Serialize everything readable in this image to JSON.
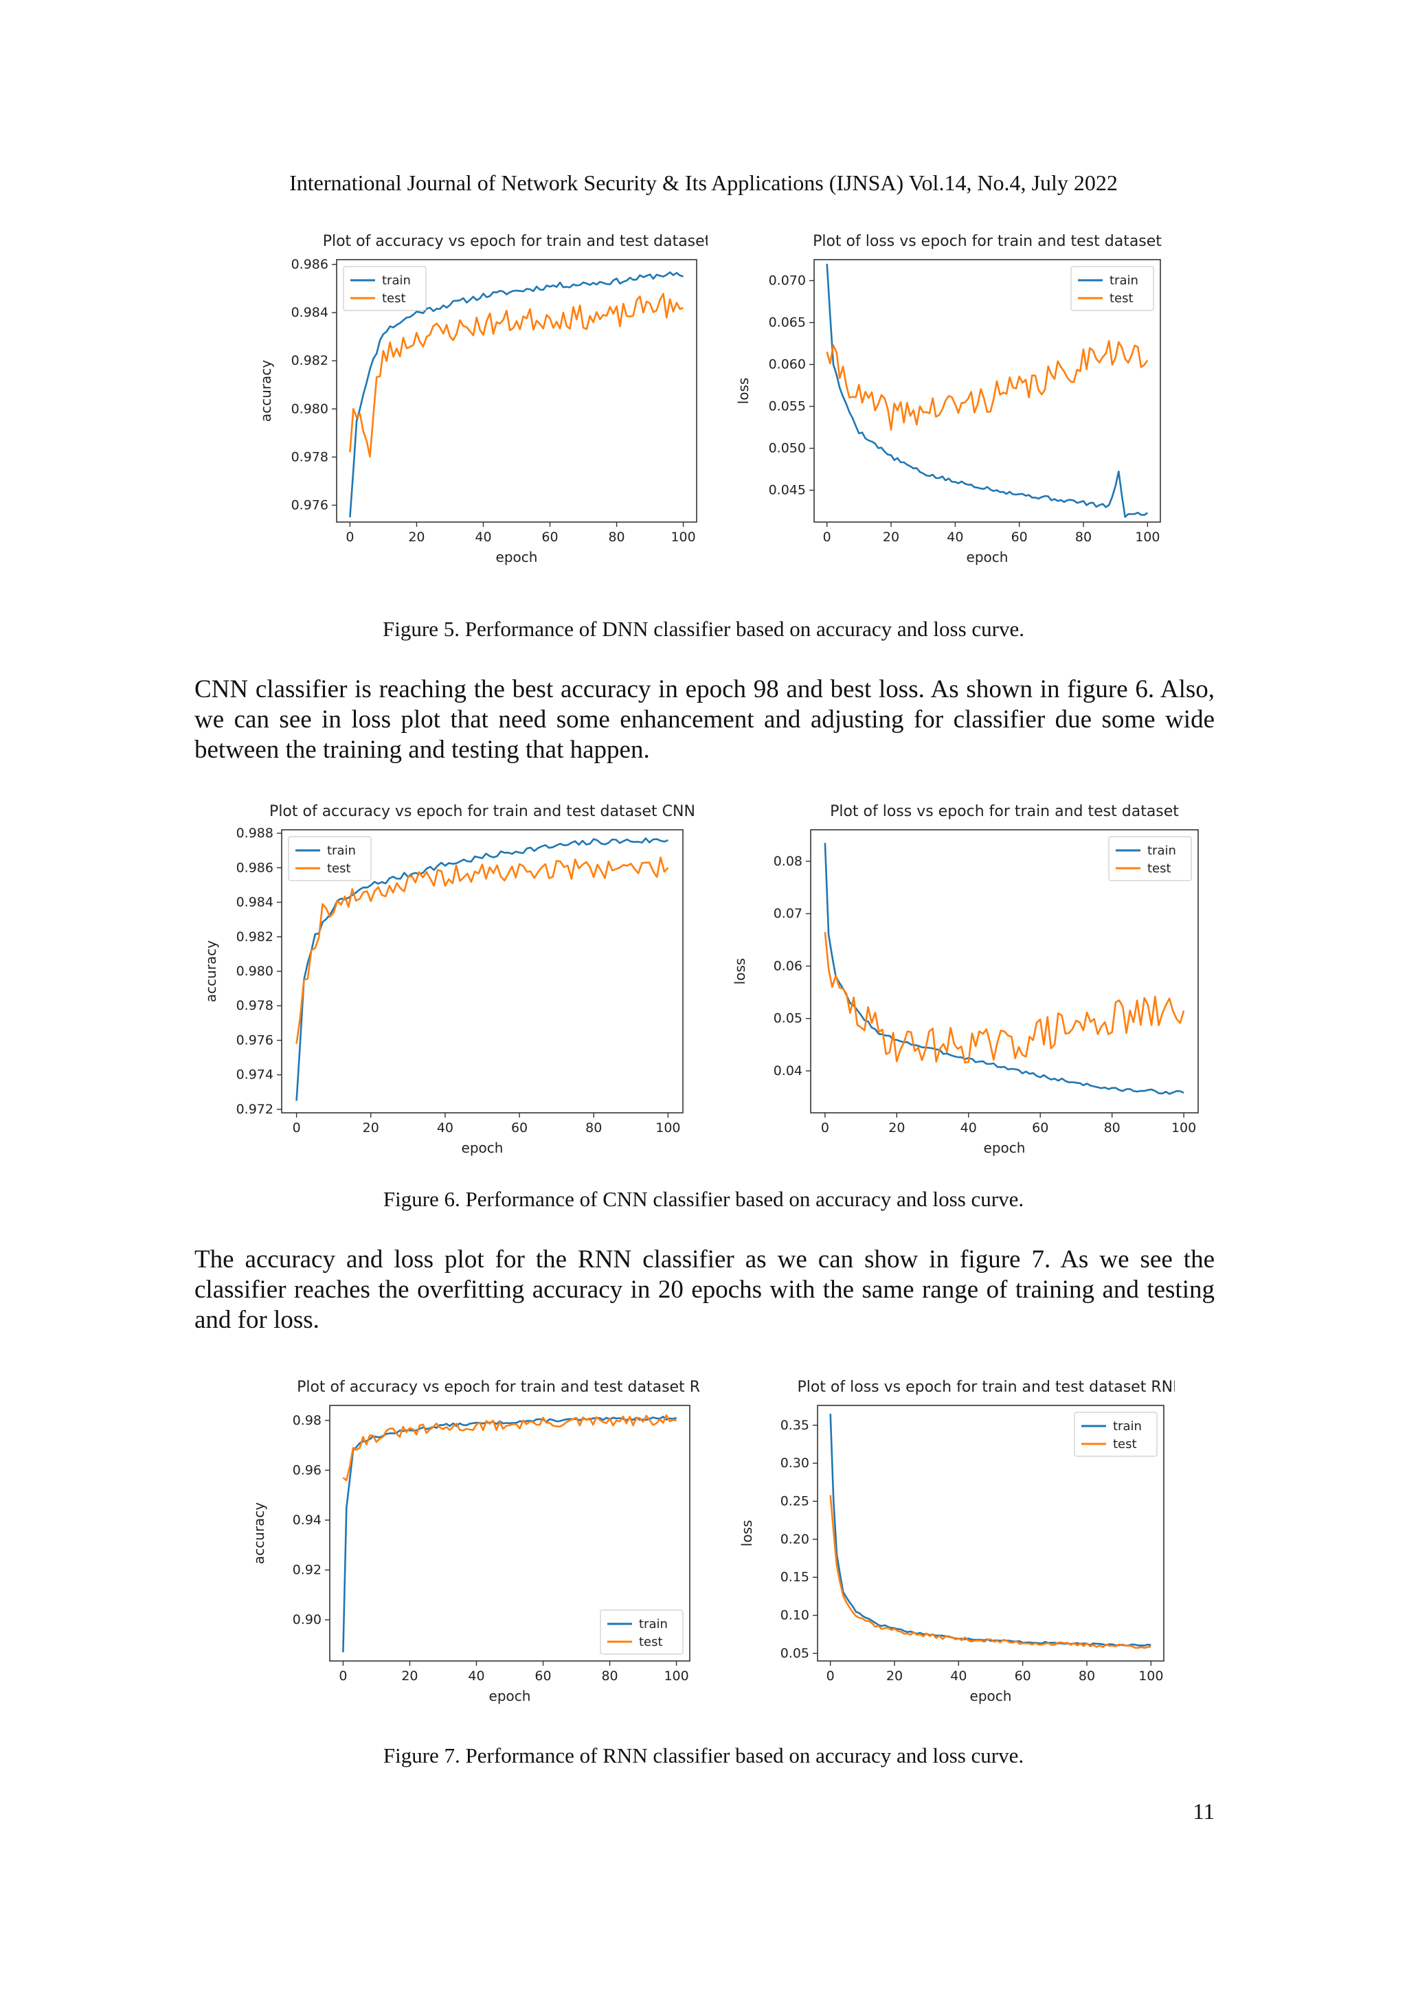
{
  "header": "International Journal of Network Security & Its Applications (IJNSA) Vol.14, No.4, July 2022",
  "page_number": "11",
  "paragraphs": [
    "CNN classifier is reaching the best accuracy in epoch 98 and best loss. As shown in figure 6. Also, we can see in loss plot that need some enhancement and adjusting for classifier due some wide between the training and testing that happen.",
    "The accuracy and loss plot for the RNN classifier as we can show in figure 7. As we see the classifier reaches the overfitting accuracy in 20 epochs with the same range of training and testing and for loss."
  ],
  "captions": [
    "Figure 5. Performance of DNN classifier based on accuracy and loss curve.",
    "Figure 6. Performance of CNN classifier based on accuracy and loss curve.",
    "Figure 7. Performance of RNN classifier based on accuracy and loss curve."
  ],
  "colors": {
    "train": "#1f77b4",
    "test": "#ff7f0e"
  },
  "chart_data": [
    {
      "id": "dnn-acc",
      "type": "line",
      "title": "Plot of accuracy vs epoch for train and test dataset",
      "xlabel": "epoch",
      "ylabel": "accuracy",
      "xlim": [
        -4,
        104
      ],
      "ylim": [
        0.9753,
        0.9862
      ],
      "xticks": [
        0,
        20,
        40,
        60,
        80,
        100
      ],
      "yticks": [
        0.976,
        0.978,
        0.98,
        0.982,
        0.984,
        0.986
      ],
      "ytick_labels": [
        "0.976",
        "0.978",
        "0.980",
        "0.982",
        "0.984",
        "0.986"
      ],
      "legend": "top-left",
      "series": [
        {
          "name": "train",
          "color": "#1f77b4",
          "noise": 0.00012,
          "seed": 11,
          "anchors": [
            [
              0,
              0.9755
            ],
            [
              2,
              0.9795
            ],
            [
              5,
              0.9812
            ],
            [
              10,
              0.9832
            ],
            [
              20,
              0.984
            ],
            [
              40,
              0.9847
            ],
            [
              60,
              0.9851
            ],
            [
              80,
              0.9853
            ],
            [
              95,
              0.9856
            ],
            [
              100,
              0.9855
            ]
          ]
        },
        {
          "name": "test",
          "color": "#ff7f0e",
          "noise": 0.0005,
          "seed": 23,
          "anchors": [
            [
              0,
              0.9782
            ],
            [
              1,
              0.98
            ],
            [
              3,
              0.9798
            ],
            [
              6,
              0.978
            ],
            [
              8,
              0.981
            ],
            [
              10,
              0.9822
            ],
            [
              20,
              0.983
            ],
            [
              40,
              0.9835
            ],
            [
              60,
              0.9838
            ],
            [
              80,
              0.9838
            ],
            [
              93,
              0.9845
            ],
            [
              97,
              0.984
            ],
            [
              100,
              0.9842
            ]
          ]
        }
      ]
    },
    {
      "id": "dnn-loss",
      "type": "line",
      "title": "Plot of loss vs epoch for train and test dataset",
      "xlabel": "epoch",
      "ylabel": "loss",
      "xlim": [
        -4,
        104
      ],
      "ylim": [
        0.0412,
        0.0725
      ],
      "xticks": [
        0,
        20,
        40,
        60,
        80,
        100
      ],
      "yticks": [
        0.045,
        0.05,
        0.055,
        0.06,
        0.065,
        0.07
      ],
      "ytick_labels": [
        "0.045",
        "0.050",
        "0.055",
        "0.060",
        "0.065",
        "0.070"
      ],
      "legend": "top-right",
      "series": [
        {
          "name": "train",
          "color": "#1f77b4",
          "noise": 0.00025,
          "seed": 5,
          "anchors": [
            [
              0,
              0.072
            ],
            [
              2,
              0.06
            ],
            [
              5,
              0.056
            ],
            [
              10,
              0.052
            ],
            [
              20,
              0.049
            ],
            [
              30,
              0.047
            ],
            [
              40,
              0.046
            ],
            [
              60,
              0.0445
            ],
            [
              80,
              0.0435
            ],
            [
              88,
              0.043
            ],
            [
              91,
              0.047
            ],
            [
              93,
              0.042
            ],
            [
              100,
              0.0423
            ]
          ]
        },
        {
          "name": "test",
          "color": "#ff7f0e",
          "noise": 0.0018,
          "seed": 41,
          "anchors": [
            [
              0,
              0.0615
            ],
            [
              5,
              0.059
            ],
            [
              10,
              0.056
            ],
            [
              20,
              0.054
            ],
            [
              40,
              0.055
            ],
            [
              60,
              0.057
            ],
            [
              75,
              0.059
            ],
            [
              85,
              0.062
            ],
            [
              95,
              0.061
            ],
            [
              100,
              0.0605
            ]
          ]
        }
      ]
    },
    {
      "id": "cnn-acc",
      "type": "line",
      "title": "Plot of accuracy vs epoch for train and test dataset CNN",
      "xlabel": "epoch",
      "ylabel": "accuracy",
      "xlim": [
        -4,
        104
      ],
      "ylim": [
        0.9718,
        0.9882
      ],
      "xticks": [
        0,
        20,
        40,
        60,
        80,
        100
      ],
      "yticks": [
        0.972,
        0.974,
        0.976,
        0.978,
        0.98,
        0.982,
        0.984,
        0.986,
        0.988
      ],
      "ytick_labels": [
        "0.972",
        "0.974",
        "0.976",
        "0.978",
        "0.980",
        "0.982",
        "0.984",
        "0.986",
        "0.988"
      ],
      "legend": "top-left",
      "series": [
        {
          "name": "train",
          "color": "#1f77b4",
          "noise": 0.00018,
          "seed": 7,
          "anchors": [
            [
              0,
              0.9725
            ],
            [
              2,
              0.9795
            ],
            [
              5,
              0.982
            ],
            [
              10,
              0.9838
            ],
            [
              20,
              0.985
            ],
            [
              40,
              0.9862
            ],
            [
              60,
              0.987
            ],
            [
              80,
              0.9875
            ],
            [
              100,
              0.9876
            ]
          ]
        },
        {
          "name": "test",
          "color": "#ff7f0e",
          "noise": 0.0006,
          "seed": 19,
          "anchors": [
            [
              0,
              0.9758
            ],
            [
              2,
              0.9795
            ],
            [
              5,
              0.9815
            ],
            [
              7,
              0.9835
            ],
            [
              10,
              0.9838
            ],
            [
              20,
              0.9846
            ],
            [
              40,
              0.9855
            ],
            [
              60,
              0.9858
            ],
            [
              80,
              0.986
            ],
            [
              100,
              0.986
            ]
          ]
        }
      ]
    },
    {
      "id": "cnn-loss",
      "type": "line",
      "title": "Plot of loss vs epoch for train and test dataset",
      "xlabel": "epoch",
      "ylabel": "loss",
      "xlim": [
        -4,
        104
      ],
      "ylim": [
        0.032,
        0.086
      ],
      "xticks": [
        0,
        20,
        40,
        60,
        80,
        100
      ],
      "yticks": [
        0.04,
        0.05,
        0.06,
        0.07,
        0.08
      ],
      "ytick_labels": [
        "0.04",
        "0.05",
        "0.06",
        "0.07",
        "0.08"
      ],
      "legend": "top-right",
      "series": [
        {
          "name": "train",
          "color": "#1f77b4",
          "noise": 0.00035,
          "seed": 3,
          "anchors": [
            [
              0,
              0.0835
            ],
            [
              1,
              0.066
            ],
            [
              3,
              0.058
            ],
            [
              7,
              0.053
            ],
            [
              15,
              0.047
            ],
            [
              30,
              0.044
            ],
            [
              45,
              0.0415
            ],
            [
              60,
              0.039
            ],
            [
              80,
              0.0365
            ],
            [
              100,
              0.0358
            ]
          ]
        },
        {
          "name": "test",
          "color": "#ff7f0e",
          "noise": 0.0035,
          "seed": 29,
          "anchors": [
            [
              0,
              0.0665
            ],
            [
              2,
              0.056
            ],
            [
              5,
              0.054
            ],
            [
              10,
              0.05
            ],
            [
              20,
              0.045
            ],
            [
              40,
              0.045
            ],
            [
              50,
              0.0445
            ],
            [
              60,
              0.047
            ],
            [
              80,
              0.05
            ],
            [
              100,
              0.0515
            ]
          ]
        }
      ]
    },
    {
      "id": "rnn-acc",
      "type": "line",
      "title": "Plot of accuracy vs epoch for train and test dataset RNN",
      "xlabel": "epoch",
      "ylabel": "accuracy",
      "xlim": [
        -4,
        104
      ],
      "ylim": [
        0.8835,
        0.986
      ],
      "xticks": [
        0,
        20,
        40,
        60,
        80,
        100
      ],
      "yticks": [
        0.9,
        0.92,
        0.94,
        0.96,
        0.98
      ],
      "ytick_labels": [
        "0.90",
        "0.92",
        "0.94",
        "0.96",
        "0.98"
      ],
      "legend": "bottom-right",
      "series": [
        {
          "name": "train",
          "color": "#1f77b4",
          "noise": 0.0006,
          "seed": 13,
          "anchors": [
            [
              0,
              0.887
            ],
            [
              1,
              0.945
            ],
            [
              3,
              0.968
            ],
            [
              6,
              0.972
            ],
            [
              15,
              0.975
            ],
            [
              30,
              0.978
            ],
            [
              60,
              0.98
            ],
            [
              100,
              0.981
            ]
          ]
        },
        {
          "name": "test",
          "color": "#ff7f0e",
          "noise": 0.0022,
          "seed": 31,
          "anchors": [
            [
              0,
              0.957
            ],
            [
              1,
              0.956
            ],
            [
              3,
              0.969
            ],
            [
              6,
              0.972
            ],
            [
              15,
              0.975
            ],
            [
              30,
              0.977
            ],
            [
              60,
              0.979
            ],
            [
              100,
              0.98
            ]
          ]
        }
      ]
    },
    {
      "id": "rnn-loss",
      "type": "line",
      "title": "Plot of loss vs epoch for train and test dataset RNN",
      "xlabel": "epoch",
      "ylabel": "loss",
      "xlim": [
        -4,
        104
      ],
      "ylim": [
        0.04,
        0.376
      ],
      "xticks": [
        0,
        20,
        40,
        60,
        80,
        100
      ],
      "yticks": [
        0.05,
        0.1,
        0.15,
        0.2,
        0.25,
        0.3,
        0.35
      ],
      "ytick_labels": [
        "0.05",
        "0.10",
        "0.15",
        "0.20",
        "0.25",
        "0.30",
        "0.35"
      ],
      "legend": "top-right",
      "series": [
        {
          "name": "train",
          "color": "#1f77b4",
          "noise": 0.0012,
          "seed": 17,
          "anchors": [
            [
              0,
              0.365
            ],
            [
              1,
              0.25
            ],
            [
              2,
              0.18
            ],
            [
              4,
              0.13
            ],
            [
              8,
              0.105
            ],
            [
              15,
              0.088
            ],
            [
              25,
              0.078
            ],
            [
              40,
              0.07
            ],
            [
              60,
              0.065
            ],
            [
              80,
              0.062
            ],
            [
              100,
              0.061
            ]
          ]
        },
        {
          "name": "test",
          "color": "#ff7f0e",
          "noise": 0.0025,
          "seed": 37,
          "anchors": [
            [
              0,
              0.258
            ],
            [
              1,
              0.21
            ],
            [
              2,
              0.165
            ],
            [
              4,
              0.125
            ],
            [
              8,
              0.1
            ],
            [
              15,
              0.085
            ],
            [
              25,
              0.076
            ],
            [
              40,
              0.069
            ],
            [
              60,
              0.064
            ],
            [
              80,
              0.061
            ],
            [
              100,
              0.059
            ]
          ]
        }
      ]
    }
  ]
}
